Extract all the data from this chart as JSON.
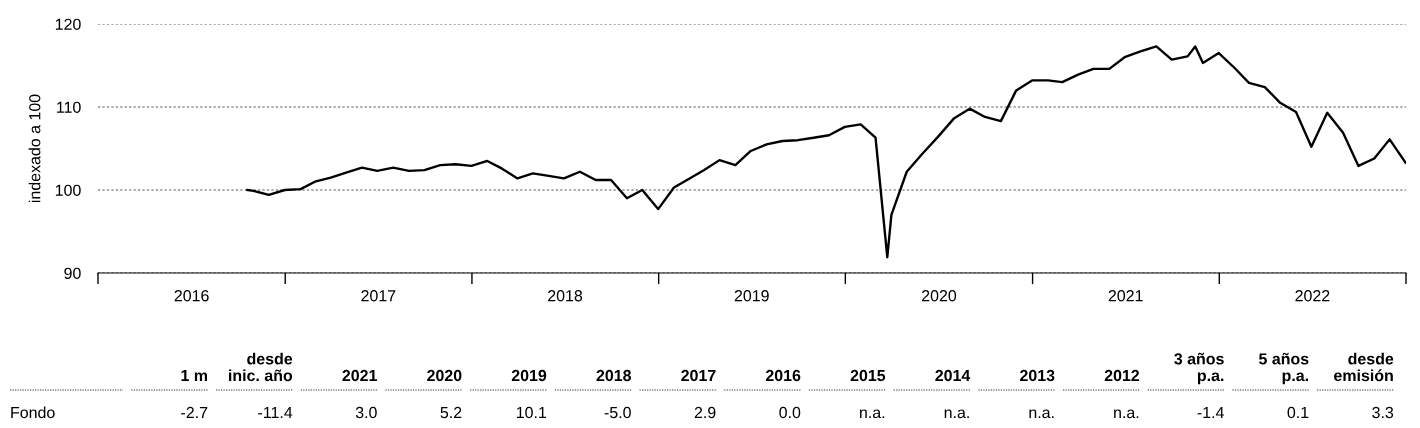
{
  "chart_data": {
    "type": "line",
    "ylabel": "indexado a 100",
    "x": [
      "2016-10-19",
      "2016-10-31",
      "2016-11-30",
      "2016-12-31",
      "2017-01-31",
      "2017-02-28",
      "2017-03-31",
      "2017-04-30",
      "2017-05-31",
      "2017-06-30",
      "2017-07-31",
      "2017-08-31",
      "2017-09-30",
      "2017-10-31",
      "2017-11-30",
      "2017-12-31",
      "2018-01-31",
      "2018-02-28",
      "2018-03-31",
      "2018-04-30",
      "2018-05-31",
      "2018-06-30",
      "2018-07-31",
      "2018-08-31",
      "2018-09-30",
      "2018-10-31",
      "2018-11-30",
      "2018-12-31",
      "2019-01-31",
      "2019-02-28",
      "2019-03-31",
      "2019-04-30",
      "2019-05-31",
      "2019-06-30",
      "2019-07-31",
      "2019-08-31",
      "2019-09-30",
      "2019-10-31",
      "2019-11-30",
      "2019-12-31",
      "2020-01-31",
      "2020-02-29",
      "2020-03-23",
      "2020-03-31",
      "2020-04-30",
      "2020-05-31",
      "2020-06-30",
      "2020-07-31",
      "2020-08-31",
      "2020-09-30",
      "2020-10-31",
      "2020-11-30",
      "2020-12-31",
      "2021-01-31",
      "2021-02-28",
      "2021-03-31",
      "2021-04-30",
      "2021-05-31",
      "2021-06-30",
      "2021-07-31",
      "2021-08-31",
      "2021-09-30",
      "2021-10-31",
      "2021-11-15",
      "2021-11-30",
      "2021-12-31",
      "2022-01-31",
      "2022-02-28",
      "2022-03-31",
      "2022-04-30",
      "2022-05-31",
      "2022-06-30",
      "2022-07-31",
      "2022-08-31",
      "2022-09-30",
      "2022-10-31",
      "2022-11-30",
      "2022-12-31"
    ],
    "series": [
      {
        "color": "#000000",
        "values": [
          100.0,
          99.9,
          99.4,
          100.0,
          100.1,
          101.0,
          101.5,
          102.1,
          102.7,
          102.3,
          102.7,
          102.3,
          102.4,
          103.0,
          103.1,
          102.9,
          103.5,
          102.6,
          101.4,
          102.0,
          101.7,
          101.4,
          102.2,
          101.2,
          101.2,
          99.0,
          100.0,
          97.7,
          100.3,
          101.3,
          102.4,
          103.6,
          103.0,
          104.7,
          105.5,
          105.9,
          106.0,
          106.3,
          106.6,
          107.6,
          107.9,
          106.3,
          91.9,
          97.0,
          102.2,
          104.4,
          106.4,
          108.6,
          109.8,
          108.8,
          108.3,
          112.0,
          113.2,
          113.2,
          113.0,
          113.9,
          114.6,
          114.6,
          116.0,
          116.7,
          117.3,
          115.7,
          116.1,
          117.3,
          115.3,
          116.5,
          114.7,
          112.9,
          112.4,
          110.5,
          109.4,
          105.2,
          109.3,
          106.9,
          102.9,
          103.8,
          106.1,
          103.3
        ]
      }
    ],
    "xlim": [
      "2016-01-01",
      "2023-01-01"
    ],
    "xticks": [
      {
        "value": "2016-01-01",
        "label": null
      },
      {
        "value": "2016-07-02",
        "label": "2016"
      },
      {
        "value": "2017-01-01",
        "label": null
      },
      {
        "value": "2017-07-02",
        "label": "2017"
      },
      {
        "value": "2018-01-01",
        "label": null
      },
      {
        "value": "2018-07-02",
        "label": "2018"
      },
      {
        "value": "2019-01-01",
        "label": null
      },
      {
        "value": "2019-07-02",
        "label": "2019"
      },
      {
        "value": "2020-01-01",
        "label": null
      },
      {
        "value": "2020-07-02",
        "label": "2020"
      },
      {
        "value": "2021-01-01",
        "label": null
      },
      {
        "value": "2021-07-02",
        "label": "2021"
      },
      {
        "value": "2022-01-01",
        "label": null
      },
      {
        "value": "2022-07-02",
        "label": "2022"
      },
      {
        "value": "2023-01-01",
        "label": null
      }
    ],
    "ylim": [
      90,
      120
    ],
    "yticks": [
      90,
      100,
      110,
      120
    ],
    "grid": "y",
    "line_style": "solid",
    "annotations": [
      "1 m",
      "desde\ninic. año",
      "2021",
      "2020",
      "2019",
      "2018",
      "2017",
      "2016",
      "2015",
      "2014",
      "2013",
      "2012",
      "3 años\np.a.",
      "5 años\np.a.",
      "desde\nemisión",
      "Fondo",
      "-2.7",
      "-11.4",
      "3.0",
      "5.2",
      "10.1",
      "-5.0",
      "2.9",
      "0.0",
      "n.a.",
      "n.a.",
      "n.a.",
      "n.a.",
      "-1.4",
      "0.1",
      "3.3"
    ]
  }
}
